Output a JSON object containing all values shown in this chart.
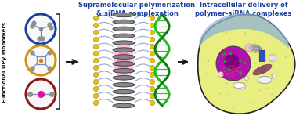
{
  "title_left": "Supramolecular polymerization\n& siRNA complexation",
  "title_right": "Intracellular delivery of\npolymer-siRNA complexes",
  "left_label": "Functional UPy Monomers",
  "circle_colors": [
    "#1a3fa0",
    "#d4940a",
    "#8b1a1a"
  ],
  "title_color": "#1a3fa0",
  "bg_color": "#ffffff",
  "arrow_color": "#1a1a1a",
  "cell_body_color": "#e8ee80",
  "cell_nucleus_color": "#b010b0",
  "cell_outline_color": "#222222",
  "cell_membrane_color": "#90aece",
  "disk_color": "#888888",
  "disk_edge_color": "#333333",
  "connector_color": "#90a8d0",
  "gold_node_color": "#e8c010",
  "dna_color1": "#20c020",
  "dna_color2": "#108010",
  "pink_glow_color": "#f060a0",
  "figsize": [
    3.78,
    1.57
  ],
  "dpi": 100
}
